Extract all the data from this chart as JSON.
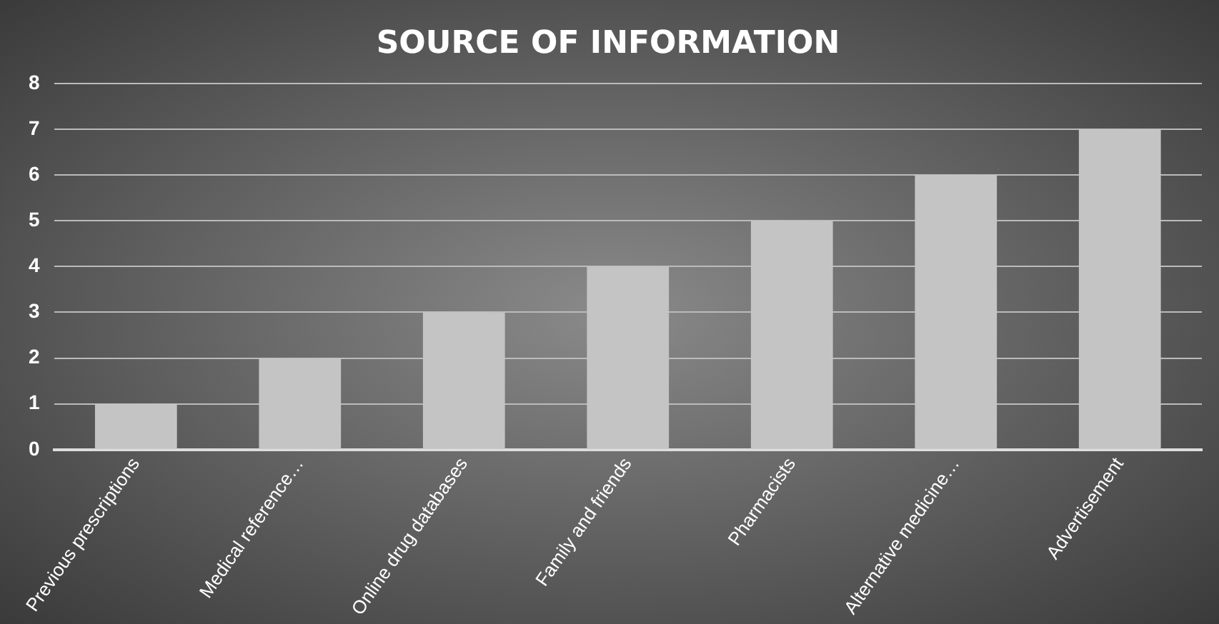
{
  "chart_data": {
    "type": "bar",
    "title": "SOURCE OF INFORMATION",
    "categories": [
      "Previous prescriptions",
      "Medical reference…",
      "Online drug databases",
      "Family and friends",
      "Pharmacists",
      "Alternative medicine…",
      "Advertisement"
    ],
    "values": [
      1,
      2,
      3,
      4,
      5,
      6,
      7
    ],
    "color": "#c4c4c4",
    "ylim": [
      0,
      8
    ],
    "yticks": [
      0,
      1,
      2,
      3,
      4,
      5,
      6,
      7,
      8
    ],
    "grid": "y",
    "legend": false
  }
}
